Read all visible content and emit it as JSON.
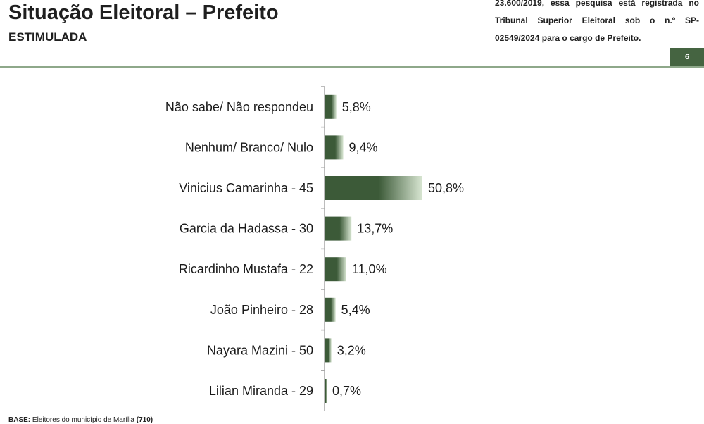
{
  "header": {
    "title": "Situação Eleitoral – Prefeito",
    "subtitle": "ESTIMULADA",
    "note": "23.600/2019, essa pesquisa está registrada no Tribunal Superior Eleitoral sob o n.º SP-02549/2024 para o cargo de Prefeito.",
    "page_number": "6"
  },
  "footer": {
    "base_label": "BASE:",
    "base_text": "Eleitores do município de Marília",
    "base_count": "(710)"
  },
  "colors": {
    "bar_dark": "#3c5a38",
    "bar_light": "#d8e6d2",
    "accent": "#456441",
    "rule": "#8ea88a"
  },
  "chart_data": {
    "type": "bar",
    "orientation": "horizontal",
    "categories": [
      "Não sabe/ Não respondeu",
      "Nenhum/ Branco/ Nulo",
      "Vinicius Camarinha - 45",
      "Garcia da Hadassa - 30",
      "Ricardinho Mustafa - 22",
      "João Pinheiro - 28",
      "Nayara Mazini - 50",
      "Lilian Miranda - 29"
    ],
    "values": [
      5.8,
      9.4,
      50.8,
      13.7,
      11.0,
      5.4,
      3.2,
      0.7
    ],
    "value_labels": [
      "5,8%",
      "9,4%",
      "50,8%",
      "13,7%",
      "11,0%",
      "5,4%",
      "3,2%",
      "0,7%"
    ],
    "title": "",
    "xlabel": "",
    "ylabel": "",
    "xlim": [
      0,
      50.8
    ],
    "grid": false,
    "legend": "none"
  }
}
